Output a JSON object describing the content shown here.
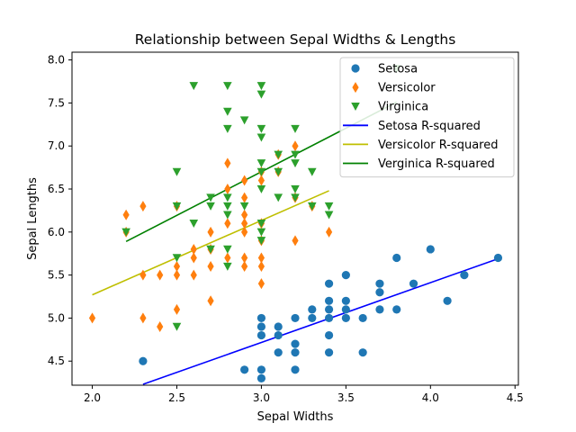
{
  "chart_data": {
    "type": "scatter",
    "title": "Relationship between Sepal Widths & Lengths",
    "xlabel": "Sepal Widths",
    "ylabel": "Sepal Lengths",
    "xlim": [
      1.88,
      4.52
    ],
    "ylim": [
      4.22,
      8.09
    ],
    "xticks": [
      "2.0",
      "2.5",
      "3.0",
      "3.5",
      "4.0",
      "4.5"
    ],
    "yticks": [
      "4.5",
      "5.0",
      "5.5",
      "6.0",
      "6.5",
      "7.0",
      "7.5",
      "8.0"
    ],
    "grid": false,
    "legend_position": "top-right",
    "series": [
      {
        "name": "Setosa",
        "marker": "circle",
        "color": "#1f77b4",
        "points": [
          [
            2.3,
            4.5
          ],
          [
            2.9,
            4.4
          ],
          [
            3.0,
            4.4
          ],
          [
            3.0,
            4.3
          ],
          [
            3.2,
            4.4
          ],
          [
            3.4,
            4.6
          ],
          [
            3.6,
            4.6
          ],
          [
            3.1,
            4.6
          ],
          [
            3.2,
            4.6
          ],
          [
            3.2,
            4.7
          ],
          [
            3.0,
            4.8
          ],
          [
            3.1,
            4.8
          ],
          [
            3.4,
            4.8
          ],
          [
            3.0,
            4.9
          ],
          [
            3.1,
            4.9
          ],
          [
            3.0,
            5.0
          ],
          [
            3.2,
            5.0
          ],
          [
            3.3,
            5.0
          ],
          [
            3.4,
            5.0
          ],
          [
            3.5,
            5.0
          ],
          [
            3.6,
            5.0
          ],
          [
            3.3,
            5.1
          ],
          [
            3.4,
            5.1
          ],
          [
            3.5,
            5.1
          ],
          [
            3.7,
            5.1
          ],
          [
            3.8,
            5.1
          ],
          [
            3.4,
            5.2
          ],
          [
            3.5,
            5.2
          ],
          [
            4.1,
            5.2
          ],
          [
            3.7,
            5.3
          ],
          [
            3.4,
            5.4
          ],
          [
            3.7,
            5.4
          ],
          [
            3.9,
            5.4
          ],
          [
            3.5,
            5.5
          ],
          [
            4.2,
            5.5
          ],
          [
            3.8,
            5.7
          ],
          [
            4.4,
            5.7
          ],
          [
            4.0,
            5.8
          ]
        ]
      },
      {
        "name": "Versicolor",
        "marker": "diamond",
        "color": "#ff7f0e",
        "points": [
          [
            2.0,
            5.0
          ],
          [
            2.3,
            5.0
          ],
          [
            2.4,
            4.9
          ],
          [
            2.5,
            5.1
          ],
          [
            2.3,
            5.5
          ],
          [
            2.4,
            5.5
          ],
          [
            2.5,
            5.5
          ],
          [
            2.6,
            5.5
          ],
          [
            2.5,
            5.6
          ],
          [
            2.7,
            5.6
          ],
          [
            2.9,
            5.6
          ],
          [
            3.0,
            5.6
          ],
          [
            2.6,
            5.7
          ],
          [
            2.8,
            5.7
          ],
          [
            2.9,
            5.7
          ],
          [
            3.0,
            5.7
          ],
          [
            2.6,
            5.8
          ],
          [
            2.7,
            5.8
          ],
          [
            2.7,
            5.2
          ],
          [
            3.0,
            5.4
          ],
          [
            3.2,
            5.9
          ],
          [
            3.0,
            5.9
          ],
          [
            2.2,
            6.0
          ],
          [
            2.7,
            6.0
          ],
          [
            2.9,
            6.0
          ],
          [
            3.4,
            6.0
          ],
          [
            2.8,
            6.1
          ],
          [
            2.9,
            6.1
          ],
          [
            3.0,
            6.1
          ],
          [
            2.2,
            6.2
          ],
          [
            2.9,
            6.2
          ],
          [
            2.3,
            6.3
          ],
          [
            2.5,
            6.3
          ],
          [
            3.3,
            6.3
          ],
          [
            2.9,
            6.4
          ],
          [
            3.2,
            6.4
          ],
          [
            2.8,
            6.5
          ],
          [
            2.9,
            6.6
          ],
          [
            3.0,
            6.6
          ],
          [
            3.0,
            6.7
          ],
          [
            3.1,
            6.7
          ],
          [
            2.8,
            6.8
          ],
          [
            3.1,
            6.9
          ],
          [
            3.2,
            7.0
          ]
        ]
      },
      {
        "name": "Virginica",
        "marker": "triangle-down",
        "color": "#2ca02c",
        "points": [
          [
            2.5,
            4.9
          ],
          [
            2.5,
            5.7
          ],
          [
            2.8,
            5.6
          ],
          [
            2.7,
            5.8
          ],
          [
            2.8,
            5.8
          ],
          [
            3.0,
            5.9
          ],
          [
            2.2,
            6.0
          ],
          [
            3.0,
            6.0
          ],
          [
            2.6,
            6.1
          ],
          [
            3.0,
            6.1
          ],
          [
            2.8,
            6.2
          ],
          [
            3.4,
            6.2
          ],
          [
            2.5,
            6.3
          ],
          [
            2.7,
            6.3
          ],
          [
            2.8,
            6.3
          ],
          [
            2.9,
            6.3
          ],
          [
            3.3,
            6.3
          ],
          [
            3.4,
            6.3
          ],
          [
            2.7,
            6.4
          ],
          [
            2.8,
            6.4
          ],
          [
            3.1,
            6.4
          ],
          [
            3.2,
            6.4
          ],
          [
            3.0,
            6.5
          ],
          [
            3.2,
            6.5
          ],
          [
            3.0,
            6.7
          ],
          [
            3.1,
            6.7
          ],
          [
            3.3,
            6.7
          ],
          [
            2.5,
            6.7
          ],
          [
            3.0,
            6.8
          ],
          [
            3.2,
            6.8
          ],
          [
            3.1,
            6.9
          ],
          [
            3.2,
            6.9
          ],
          [
            3.2,
            7.2
          ],
          [
            3.0,
            7.2
          ],
          [
            2.8,
            7.2
          ],
          [
            3.0,
            7.1
          ],
          [
            2.9,
            7.3
          ],
          [
            2.8,
            7.4
          ],
          [
            3.0,
            7.6
          ],
          [
            3.0,
            7.7
          ],
          [
            2.8,
            7.7
          ],
          [
            2.6,
            7.7
          ],
          [
            3.8,
            7.9
          ]
        ]
      }
    ],
    "fit_lines": [
      {
        "name": "Setosa R-squared",
        "color": "#0000ff",
        "x": [
          2.3,
          4.4
        ],
        "y": [
          4.23,
          5.69
        ]
      },
      {
        "name": "Versicolor R-squared",
        "color": "#bfbf00",
        "x": [
          2.0,
          3.4
        ],
        "y": [
          5.27,
          6.48
        ]
      },
      {
        "name": "Verginica R-squared",
        "color": "#008000",
        "x": [
          2.2,
          3.8
        ],
        "y": [
          5.89,
          7.51
        ]
      }
    ]
  }
}
